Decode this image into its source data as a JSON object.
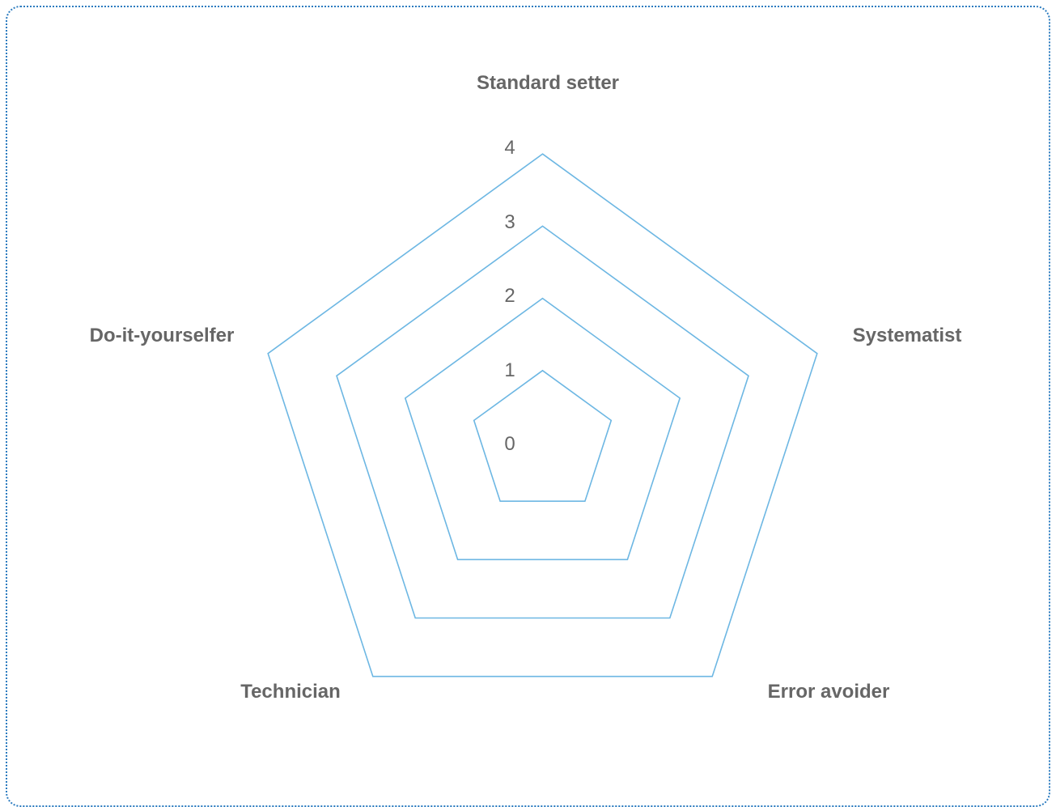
{
  "chart_data": {
    "type": "radar",
    "axes": [
      "Standard setter",
      "Systematist",
      "Error avoider",
      "Technician",
      "Do-it-yourselfer"
    ],
    "rlim": [
      0,
      4
    ],
    "ticks": [
      "0",
      "1",
      "2",
      "3",
      "4"
    ],
    "series": [],
    "grid": true,
    "grid_color": "#6db7e3",
    "label_color": "#666666",
    "border_color": "#2b7bbf"
  }
}
